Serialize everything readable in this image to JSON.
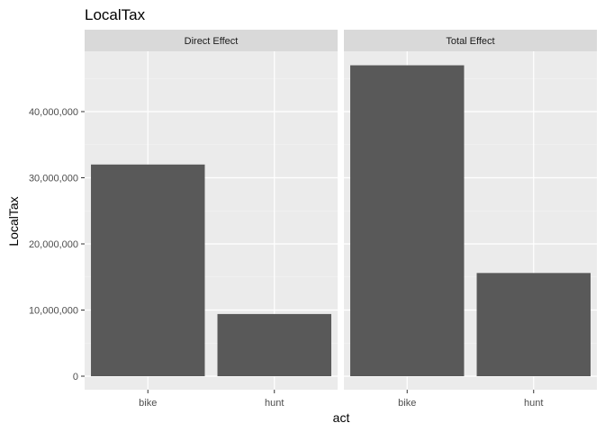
{
  "chart_data": {
    "type": "bar",
    "title": "LocalTax",
    "xlabel": "act",
    "ylabel": "LocalTax",
    "categories": [
      "bike",
      "hunt"
    ],
    "ylim": [
      0,
      50000000
    ],
    "yticks": [
      0,
      10000000,
      20000000,
      30000000,
      40000000
    ],
    "ytick_labels": [
      "0",
      "10,000,000",
      "20,000,000",
      "30,000,000",
      "40,000,000"
    ],
    "facets": [
      {
        "label": "Direct Effect",
        "values": [
          32000000,
          9400000
        ]
      },
      {
        "label": "Total Effect",
        "values": [
          47000000,
          15600000
        ]
      }
    ],
    "bar_color": "#595959",
    "panel_color": "#ebebeb",
    "strip_color": "#d9d9d9",
    "grid": true,
    "legend": "none"
  }
}
